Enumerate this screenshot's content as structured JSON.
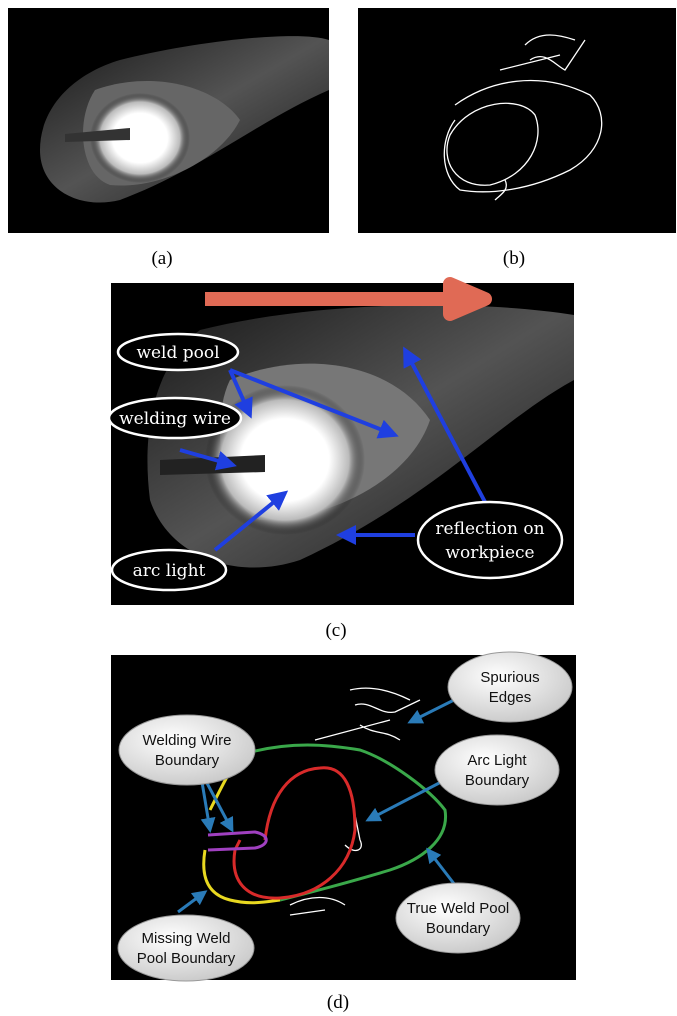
{
  "panels": [
    {
      "caption": "(a)"
    },
    {
      "caption": "(b)"
    },
    {
      "caption": "(c)",
      "labels": [
        {
          "lines": [
            "weld pool"
          ]
        },
        {
          "lines": [
            "welding wire"
          ]
        },
        {
          "lines": [
            "arc light"
          ]
        },
        {
          "lines": [
            "reflection on",
            "workpiece"
          ]
        }
      ]
    },
    {
      "caption": "(d)",
      "labels": [
        {
          "lines": [
            "Spurious",
            "Edges"
          ]
        },
        {
          "lines": [
            "Welding Wire",
            "Boundary"
          ]
        },
        {
          "lines": [
            "Arc Light",
            "Boundary"
          ]
        },
        {
          "lines": [
            "True Weld Pool",
            "Boundary"
          ]
        },
        {
          "lines": [
            "Missing Weld",
            "Pool Boundary"
          ]
        }
      ]
    }
  ]
}
